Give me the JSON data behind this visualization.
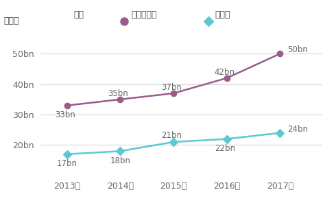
{
  "years": [
    2013,
    2014,
    2015,
    2016,
    2017
  ],
  "year_labels": [
    "2013年",
    "2014年",
    "2015年",
    "2016年",
    "2017年"
  ],
  "metro_values": [
    33,
    35,
    37,
    42,
    50
  ],
  "regional_values": [
    17,
    18,
    21,
    22,
    24
  ],
  "metro_labels": [
    "33bn",
    "35bn",
    "37bn",
    "42bn",
    "50bn"
  ],
  "regional_labels": [
    "17bn",
    "18bn",
    "21bn",
    "22bn",
    "24bn"
  ],
  "metro_color": "#9b5b8b",
  "regional_color": "#5bc8d4",
  "ylim": [
    10,
    55
  ],
  "yticks": [
    20,
    30,
    40,
    50
  ],
  "ytick_labels": [
    "20bn",
    "30bn",
    "40bn",
    "50bn"
  ],
  "ylabel": "（円）",
  "legend_title": "凡例",
  "legend_metro": "３大都市圈",
  "legend_regional": "地方圈",
  "bg_color": "#ffffff",
  "grid_color": "#d8d8d8",
  "label_fontsize": 8.5,
  "axis_fontsize": 9,
  "legend_fontsize": 9
}
